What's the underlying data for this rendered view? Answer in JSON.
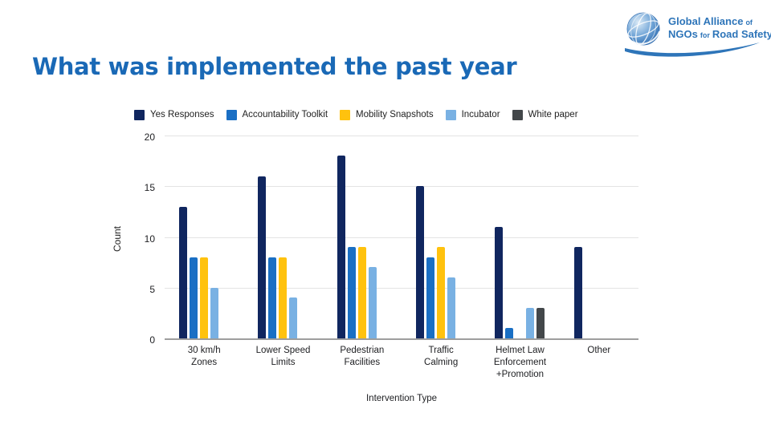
{
  "slide": {
    "title": "What was implemented the past year",
    "title_color": "#1a69b6"
  },
  "logo": {
    "line1_big": "Global Alliance",
    "line1_small": "of",
    "line2_big1": "NGOs",
    "line2_small": "for",
    "line2_big2": "Road Safety",
    "brand_color": "#2e75b9"
  },
  "chart_data": {
    "type": "bar",
    "title": "",
    "xlabel": "Intervention Type",
    "ylabel": "Count",
    "ylim": [
      0,
      20
    ],
    "yticks": [
      0,
      5,
      10,
      15,
      20
    ],
    "grid": true,
    "legend_position": "top",
    "categories": [
      "30 km/h\nZones",
      "Lower Speed\nLimits",
      "Pedestrian\nFacilities",
      "Traffic\nCalming",
      "Helmet Law\nEnforcement\n+Promotion",
      "Other"
    ],
    "series": [
      {
        "name": "Yes Responses",
        "color": "#10265f",
        "values": [
          13,
          16,
          18,
          15,
          11,
          9
        ]
      },
      {
        "name": "Accountability Toolkit",
        "color": "#1a6fc4",
        "values": [
          8,
          8,
          9,
          8,
          1,
          0
        ]
      },
      {
        "name": "Mobility Snapshots",
        "color": "#ffc20e",
        "values": [
          8,
          8,
          9,
          9,
          0,
          0
        ]
      },
      {
        "name": "Incubator",
        "color": "#79b1e3",
        "values": [
          5,
          4,
          7,
          6,
          3,
          0
        ]
      },
      {
        "name": "White paper",
        "color": "#43474a",
        "values": [
          0,
          0,
          0,
          0,
          3,
          0
        ]
      }
    ]
  }
}
